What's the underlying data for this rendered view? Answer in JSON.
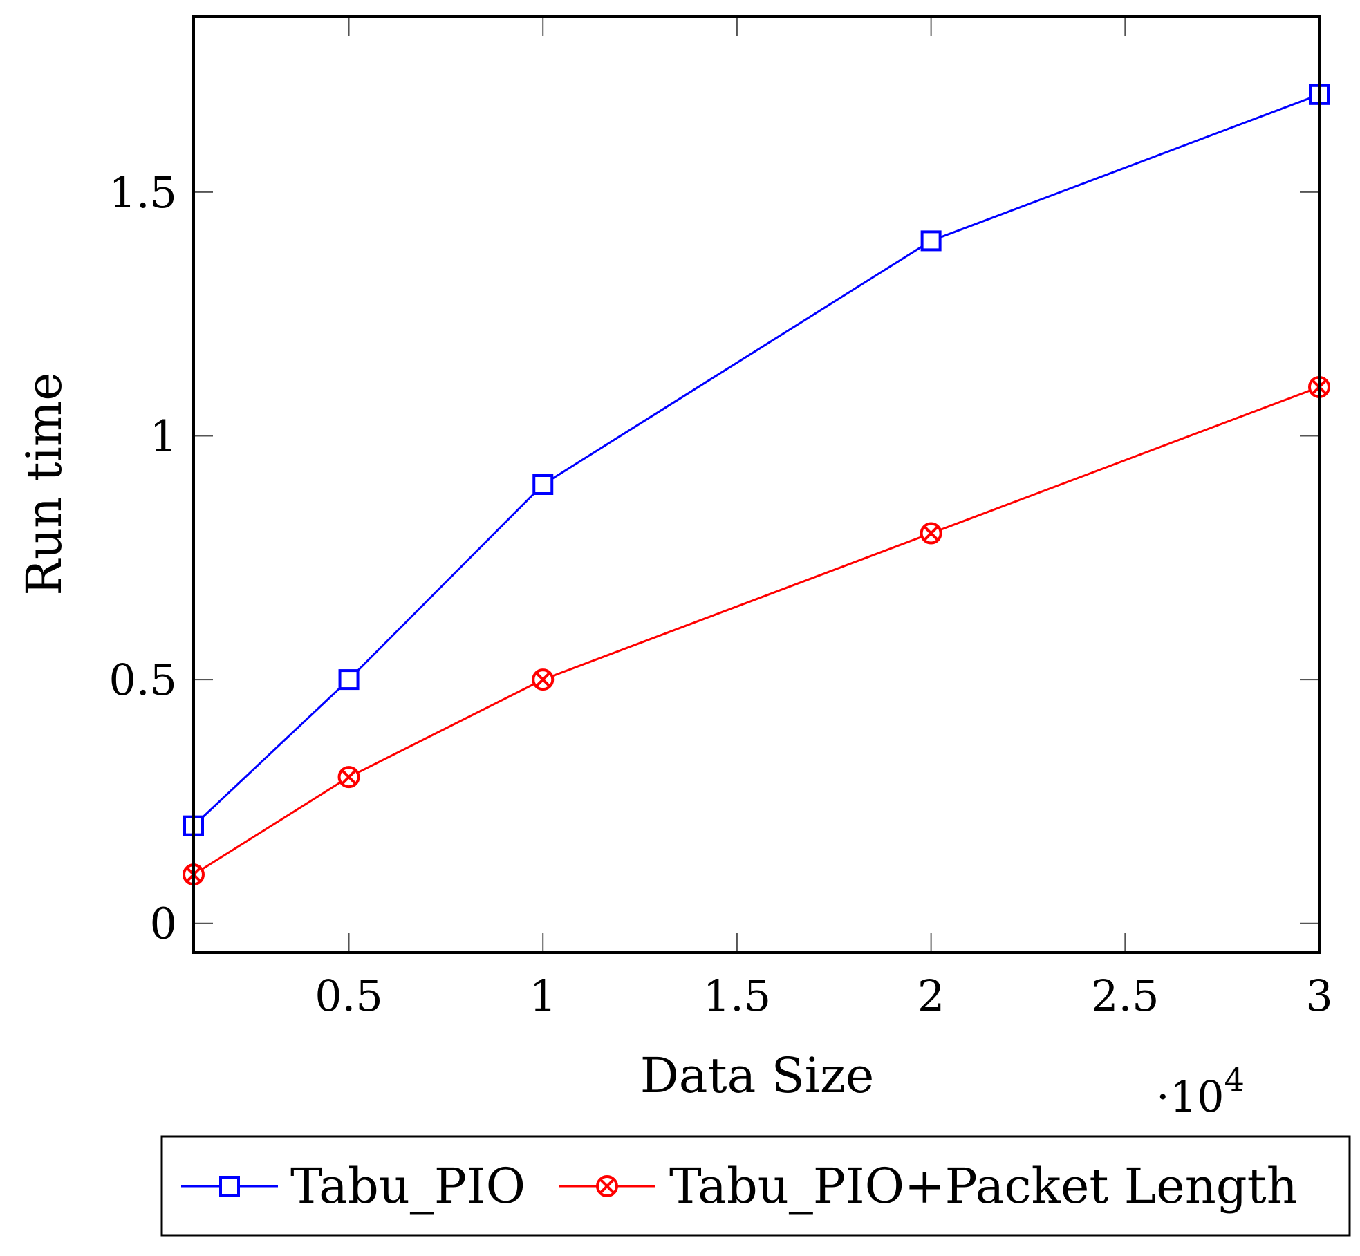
{
  "chart_data": {
    "type": "line",
    "title": "",
    "xlabel": "Data Size",
    "ylabel": "Run time",
    "x_scale_label": "·10",
    "x_scale_exponent": "4",
    "xlim": [
      0.1,
      3.0
    ],
    "ylim": [
      -0.06,
      1.86
    ],
    "x_ticks": [
      0.5,
      1,
      1.5,
      2,
      2.5,
      3
    ],
    "x_tick_labels": [
      "0.5",
      "1",
      "1.5",
      "2",
      "2.5",
      "3"
    ],
    "y_ticks": [
      0,
      0.5,
      1,
      1.5
    ],
    "y_tick_labels": [
      "0",
      "0.5",
      "1",
      "1.5"
    ],
    "grid": false,
    "legend_position": "bottom",
    "series": [
      {
        "name": "Tabu_PIO",
        "color": "#0000ff",
        "marker": "square",
        "x": [
          0.1,
          0.5,
          1,
          2,
          3
        ],
        "values": [
          0.2,
          0.5,
          0.9,
          1.4,
          1.7
        ]
      },
      {
        "name": "Tabu_PIO+Packet Length",
        "color": "#ff0000",
        "marker": "circle-x",
        "x": [
          0.1,
          0.5,
          1,
          2,
          3
        ],
        "values": [
          0.1,
          0.3,
          0.5,
          0.8,
          1.1
        ]
      }
    ]
  }
}
